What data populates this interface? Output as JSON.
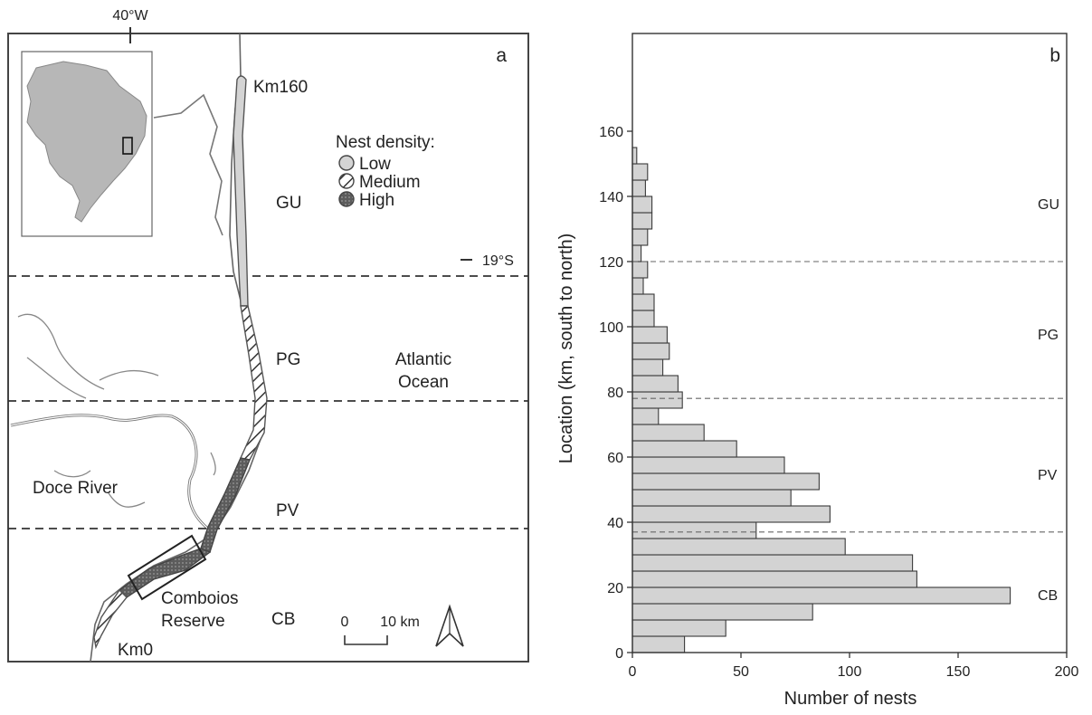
{
  "map": {
    "panel_label": "a",
    "longitude_label": "40°W",
    "latitude_label": "19°S",
    "km_north": "Km160",
    "km_south": "Km0",
    "legend_title": "Nest density:",
    "legend_items": [
      {
        "label": "Low",
        "pattern": "solid-gray"
      },
      {
        "label": "Medium",
        "pattern": "hatched"
      },
      {
        "label": "High",
        "pattern": "dotted-dark"
      }
    ],
    "zones": [
      "GU",
      "PG",
      "PV",
      "CB"
    ],
    "ocean_label_line1": "Atlantic",
    "ocean_label_line2": "Ocean",
    "river_label": "Doce River",
    "reserve_label_line1": "Comboios",
    "reserve_label_line2": "Reserve",
    "scale_zero": "0",
    "scale_ten": "10 km",
    "colors": {
      "low": "#d4d4d4",
      "land": "#c8c8c8",
      "high": "#5a5a5a"
    }
  },
  "chart_data": {
    "type": "bar",
    "orientation": "horizontal",
    "panel_label": "b",
    "xlabel": "Number of nests",
    "ylabel": "Location (km, south to north)",
    "xlim": [
      0,
      200
    ],
    "ylim": [
      0,
      190
    ],
    "xticks": [
      0,
      50,
      100,
      150,
      200
    ],
    "yticks": [
      0,
      20,
      40,
      60,
      80,
      100,
      120,
      140,
      160
    ],
    "bin_width_km": 5,
    "bins_start_km": [
      0,
      5,
      10,
      15,
      20,
      25,
      30,
      35,
      40,
      45,
      50,
      55,
      60,
      65,
      70,
      75,
      80,
      85,
      90,
      95,
      100,
      105,
      110,
      115,
      120,
      125,
      130,
      135,
      140,
      145,
      150,
      155
    ],
    "values": [
      24,
      43,
      83,
      174,
      131,
      129,
      98,
      57,
      91,
      73,
      86,
      70,
      48,
      33,
      12,
      23,
      21,
      14,
      17,
      16,
      10,
      10,
      5,
      7,
      4,
      7,
      9,
      9,
      6,
      7,
      2,
      0
    ],
    "zone_boundaries_km": [
      37,
      78,
      120
    ],
    "zone_labels": [
      {
        "label": "CB",
        "y": 18
      },
      {
        "label": "PV",
        "y": 55
      },
      {
        "label": "PG",
        "y": 98
      },
      {
        "label": "GU",
        "y": 138
      }
    ],
    "bar_color": "#d3d3d3"
  }
}
